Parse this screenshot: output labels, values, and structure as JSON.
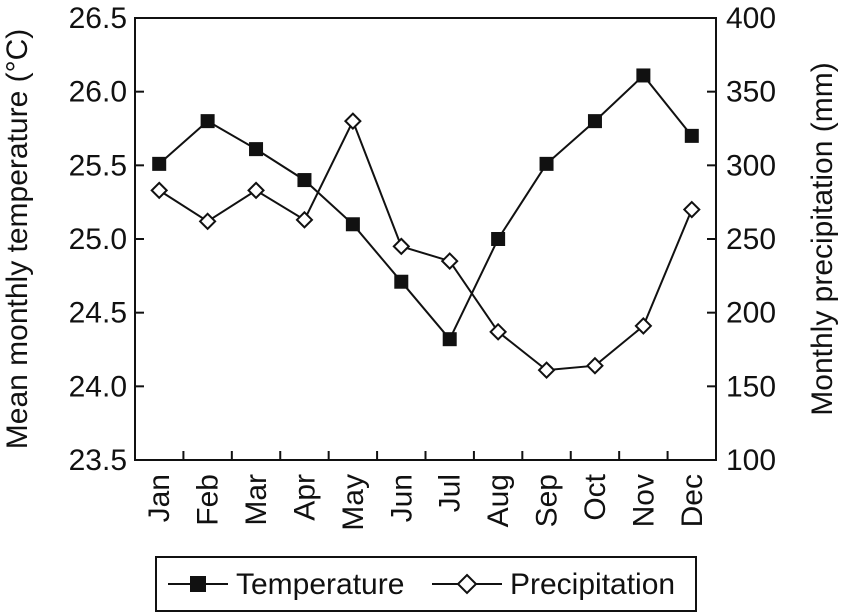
{
  "chart_data": {
    "type": "line",
    "categories": [
      "Jan",
      "Feb",
      "Mar",
      "Apr",
      "May",
      "Jun",
      "Jul",
      "Aug",
      "Sep",
      "Oct",
      "Nov",
      "Dec"
    ],
    "ylabel_left": "Mean monthly temperature (°C)",
    "ylabel_right": "Monthly precipitation (mm)",
    "ylim_left": [
      23.5,
      26.5
    ],
    "ylim_right": [
      100,
      400
    ],
    "yticks_left": [
      "23.5",
      "24.0",
      "24.5",
      "25.0",
      "25.5",
      "26.0",
      "26.5"
    ],
    "yticks_right": [
      "100",
      "150",
      "200",
      "250",
      "300",
      "350",
      "400"
    ],
    "grid": false,
    "legend_position": "bottom",
    "series": [
      {
        "name": "Temperature",
        "axis": "left",
        "marker": "filled-square",
        "values": [
          25.51,
          25.8,
          25.61,
          25.4,
          25.1,
          24.71,
          24.32,
          25.0,
          25.51,
          25.8,
          26.11,
          25.7
        ]
      },
      {
        "name": "Precipitation",
        "axis": "right",
        "marker": "open-diamond",
        "values": [
          283,
          262,
          283,
          263,
          330,
          245,
          235,
          187,
          161,
          164,
          191,
          270
        ]
      }
    ]
  }
}
